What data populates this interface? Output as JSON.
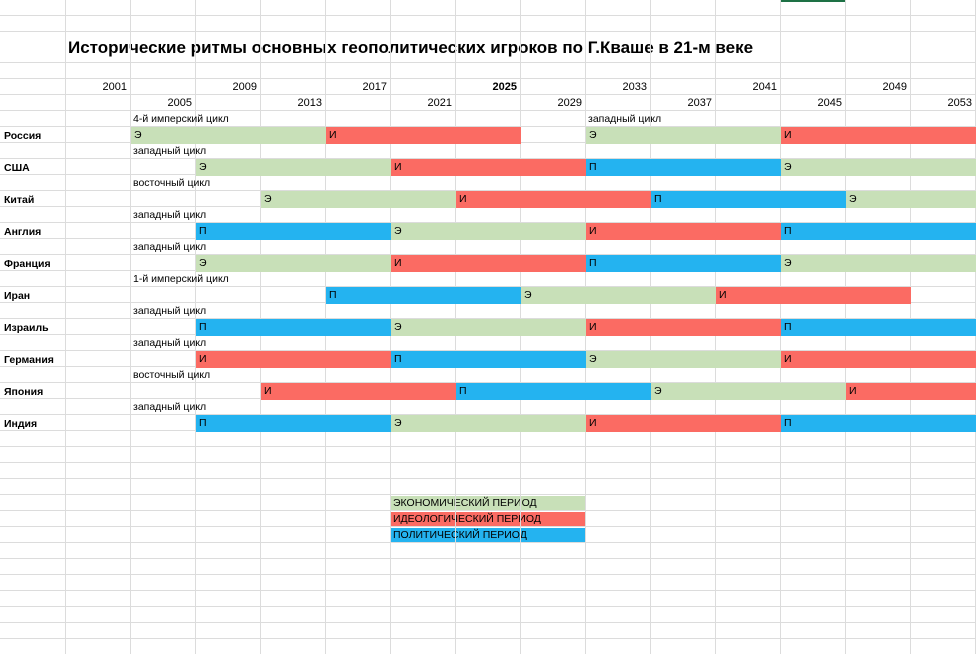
{
  "title": "Исторические ритмы основных геополитических игроков по Г.Кваше в 21-м веке",
  "years_top": [
    {
      "label": "2001",
      "bold": false
    },
    {
      "label": "2009",
      "bold": false
    },
    {
      "label": "2017",
      "bold": false
    },
    {
      "label": "2025",
      "bold": true
    },
    {
      "label": "2033",
      "bold": false
    },
    {
      "label": "2041",
      "bold": false
    },
    {
      "label": "2049",
      "bold": false
    }
  ],
  "years_bottom": [
    "2005",
    "2013",
    "2021",
    "2029",
    "2037",
    "2045",
    "2053"
  ],
  "colors": {
    "economic": "#c8e0b8",
    "ideological": "#fb6b63",
    "political": "#24b3f0"
  },
  "rows": [
    {
      "country": "Россия",
      "cycles": [
        {
          "text": "4-й имперский цикл",
          "col": 2
        },
        {
          "text": "западный цикл",
          "col": 9
        }
      ],
      "segments": [
        {
          "type": "economic",
          "label": "Э",
          "start": 2,
          "end": 5
        },
        {
          "type": "ideological",
          "label": "И",
          "start": 5,
          "end": 8
        },
        {
          "type": "economic",
          "label": "Э",
          "start": 9,
          "end": 12
        },
        {
          "type": "ideological",
          "label": "И",
          "start": 12,
          "end": 15
        }
      ]
    },
    {
      "country": "США",
      "cycles": [
        {
          "text": "западный цикл",
          "col": 2
        }
      ],
      "segments": [
        {
          "type": "economic",
          "label": "Э",
          "start": 3,
          "end": 6
        },
        {
          "type": "ideological",
          "label": "И",
          "start": 6,
          "end": 9
        },
        {
          "type": "political",
          "label": "П",
          "start": 9,
          "end": 12
        },
        {
          "type": "economic",
          "label": "Э",
          "start": 12,
          "end": 15
        }
      ]
    },
    {
      "country": "Китай",
      "cycles": [
        {
          "text": "восточный цикл",
          "col": 2
        }
      ],
      "segments": [
        {
          "type": "economic",
          "label": "Э",
          "start": 4,
          "end": 7
        },
        {
          "type": "ideological",
          "label": "И",
          "start": 7,
          "end": 10
        },
        {
          "type": "political",
          "label": "П",
          "start": 10,
          "end": 13
        },
        {
          "type": "economic",
          "label": "Э",
          "start": 13,
          "end": 15
        }
      ]
    },
    {
      "country": "Англия",
      "cycles": [
        {
          "text": "западный цикл",
          "col": 2
        }
      ],
      "segments": [
        {
          "type": "political",
          "label": "П",
          "start": 3,
          "end": 6
        },
        {
          "type": "economic",
          "label": "Э",
          "start": 6,
          "end": 9
        },
        {
          "type": "ideological",
          "label": "И",
          "start": 9,
          "end": 12
        },
        {
          "type": "political",
          "label": "П",
          "start": 12,
          "end": 15
        }
      ]
    },
    {
      "country": "Франция",
      "cycles": [
        {
          "text": "западный цикл",
          "col": 2
        }
      ],
      "segments": [
        {
          "type": "economic",
          "label": "Э",
          "start": 3,
          "end": 6
        },
        {
          "type": "ideological",
          "label": "И",
          "start": 6,
          "end": 9
        },
        {
          "type": "political",
          "label": "П",
          "start": 9,
          "end": 12
        },
        {
          "type": "economic",
          "label": "Э",
          "start": 12,
          "end": 15
        }
      ]
    },
    {
      "country": "Иран",
      "cycles": [
        {
          "text": "1-й имперский цикл",
          "col": 2
        }
      ],
      "segments": [
        {
          "type": "political",
          "label": "П",
          "start": 5,
          "end": 8
        },
        {
          "type": "economic",
          "label": "Э",
          "start": 8,
          "end": 11
        },
        {
          "type": "ideological",
          "label": "И",
          "start": 11,
          "end": 14
        }
      ]
    },
    {
      "country": "Израиль",
      "cycles": [
        {
          "text": "западный цикл",
          "col": 2
        }
      ],
      "segments": [
        {
          "type": "political",
          "label": "П",
          "start": 3,
          "end": 6
        },
        {
          "type": "economic",
          "label": "Э",
          "start": 6,
          "end": 9
        },
        {
          "type": "ideological",
          "label": "И",
          "start": 9,
          "end": 12
        },
        {
          "type": "political",
          "label": "П",
          "start": 12,
          "end": 15
        }
      ]
    },
    {
      "country": "Германия",
      "cycles": [
        {
          "text": "западный цикл",
          "col": 2
        }
      ],
      "segments": [
        {
          "type": "ideological",
          "label": "И",
          "start": 3,
          "end": 6
        },
        {
          "type": "political",
          "label": "П",
          "start": 6,
          "end": 9
        },
        {
          "type": "economic",
          "label": "Э",
          "start": 9,
          "end": 12
        },
        {
          "type": "ideological",
          "label": "И",
          "start": 12,
          "end": 15
        }
      ]
    },
    {
      "country": "Япония",
      "cycles": [
        {
          "text": "восточный цикл",
          "col": 2
        }
      ],
      "segments": [
        {
          "type": "ideological",
          "label": "И",
          "start": 4,
          "end": 7
        },
        {
          "type": "political",
          "label": "П",
          "start": 7,
          "end": 10
        },
        {
          "type": "economic",
          "label": "Э",
          "start": 10,
          "end": 13
        },
        {
          "type": "ideological",
          "label": "И",
          "start": 13,
          "end": 15
        }
      ]
    },
    {
      "country": "Индия",
      "cycles": [
        {
          "text": "западный цикл",
          "col": 2
        }
      ],
      "segments": [
        {
          "type": "political",
          "label": "П",
          "start": 3,
          "end": 6
        },
        {
          "type": "economic",
          "label": "Э",
          "start": 6,
          "end": 9
        },
        {
          "type": "ideological",
          "label": "И",
          "start": 9,
          "end": 12
        },
        {
          "type": "political",
          "label": "П",
          "start": 12,
          "end": 15
        }
      ]
    }
  ],
  "legend": [
    {
      "type": "economic",
      "label": "ЭКОНОМИЧЕСКИЙ ПЕРИОД"
    },
    {
      "type": "ideological",
      "label": "ИДЕОЛОГИЧЕСКИЙ ПЕРИОД"
    },
    {
      "type": "political",
      "label": "ПОЛИТИЧЕСКИЙ ПЕРИОД"
    }
  ]
}
